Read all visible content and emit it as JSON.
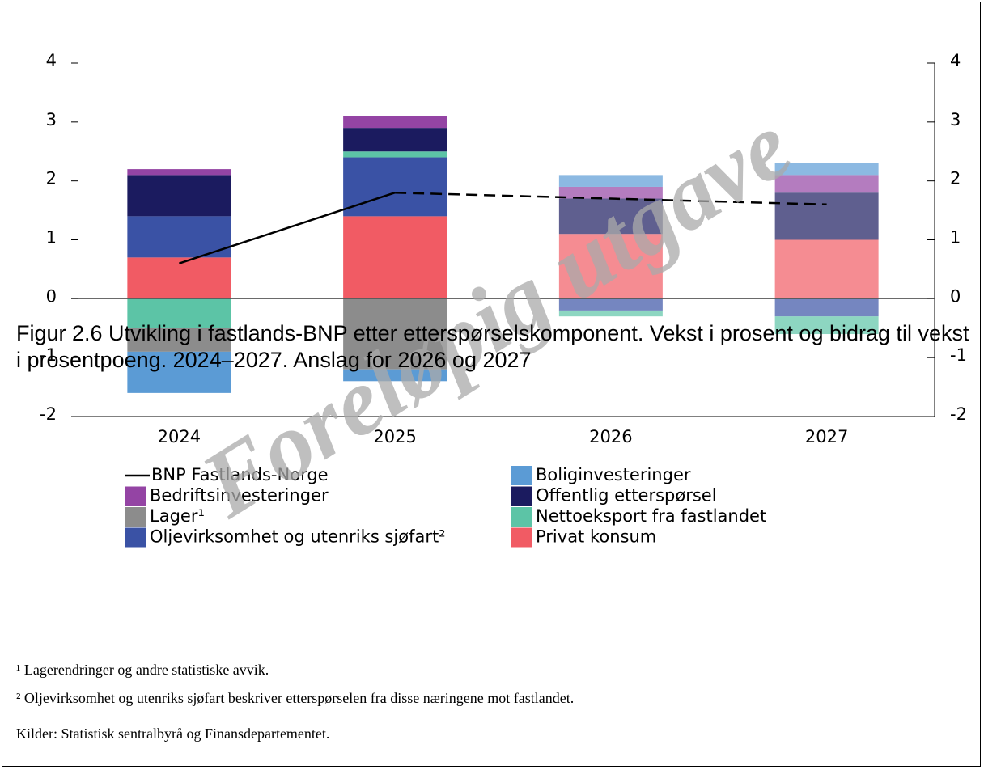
{
  "chart_data": {
    "type": "bar",
    "stacked": true,
    "categories": [
      "2024",
      "2025",
      "2026",
      "2027"
    ],
    "series": [
      {
        "name": "Boliginvesteringer",
        "color": "#5b9bd5",
        "values": [
          -0.7,
          -0.2,
          0.2,
          0.2
        ]
      },
      {
        "name": "Bedriftsinvesteringer",
        "color": "#9444a4",
        "values": [
          0.1,
          0.2,
          0.2,
          0.3
        ]
      },
      {
        "name": "Offentlig etterspørsel",
        "color": "#1b1b5f",
        "values": [
          0.7,
          0.4,
          0.6,
          0.8
        ]
      },
      {
        "name": "Lager¹",
        "color": "#8c8c8c",
        "values": [
          -0.4,
          -1.2,
          0,
          0
        ]
      },
      {
        "name": "Nettoeksport fra fastlandet",
        "color": "#5cc4a6",
        "values": [
          -0.5,
          0.1,
          -0.1,
          -0.3
        ]
      },
      {
        "name": "Oljevirksomhet og utenriks sjøfart²",
        "color": "#3a52a5",
        "values": [
          0.7,
          1.0,
          -0.2,
          -0.3
        ]
      },
      {
        "name": "Privat konsum",
        "color": "#f15b64",
        "values": [
          0.7,
          1.4,
          1.1,
          1.0
        ]
      }
    ],
    "line": {
      "name": "BNP Fastlands-Norge",
      "color": "#000000",
      "values": [
        0.6,
        1.8,
        1.7,
        1.6
      ]
    },
    "ylim": [
      -2,
      4
    ],
    "yticks": [
      -2,
      -1,
      0,
      1,
      2,
      3,
      4
    ],
    "y2lim": [
      -2,
      4
    ],
    "y2ticks": [
      -2,
      -1,
      0,
      1,
      2,
      3,
      4
    ],
    "title": "Figur 2.6 Utvikling i fastlands-BNP etter etterspørselskomponent. Vekst i prosent og bidrag til vekst i prosentpoeng. 2024–2027. Anslag for 2026 og 2027",
    "notes": [
      "¹ Lagerendringer og andre statistiske avvik.",
      "² Oljevirksomhet og utenriks sjøfart beskriver etterspørselen fra disse næringene mot fastlandet."
    ],
    "source": "Kilder: Statistisk sentralbyrå og Finansdepartementet.",
    "watermark": "Foreløpig utgave"
  }
}
